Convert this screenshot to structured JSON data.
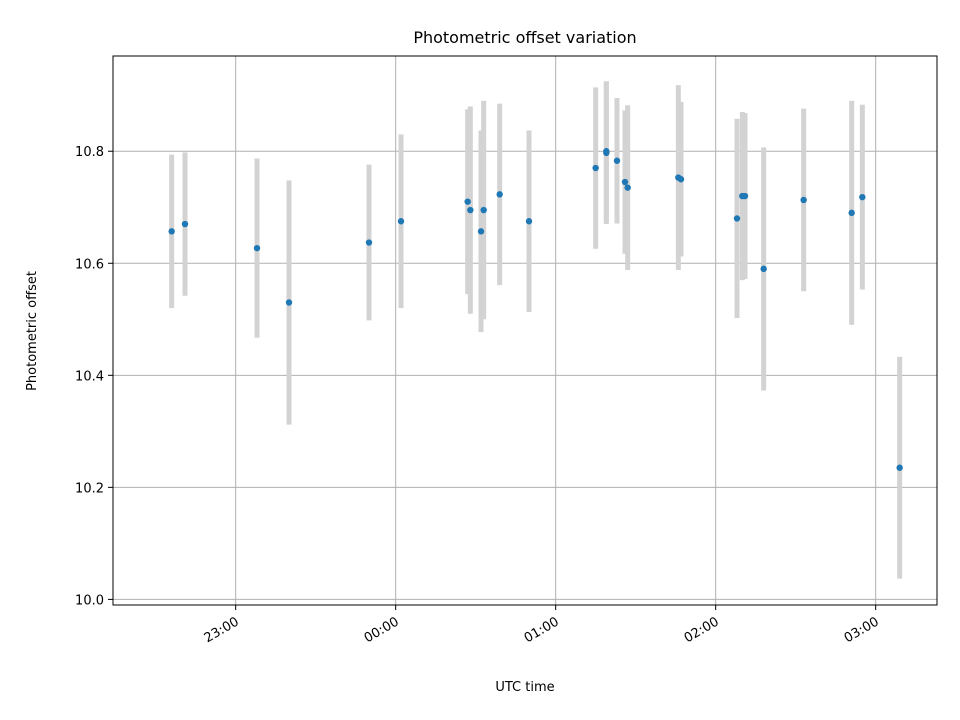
{
  "chart_data": {
    "type": "scatter",
    "title": "Photometric offset variation",
    "xlabel": "UTC time",
    "ylabel": "Photometric offset",
    "x_axis_type": "time",
    "xlim": [
      "22:14",
      "03:23"
    ],
    "ylim": [
      9.99,
      10.97
    ],
    "grid": true,
    "x_ticks": [
      "23:00",
      "00:00",
      "01:00",
      "02:00",
      "03:00"
    ],
    "x_tick_rotation": 30,
    "y_ticks": [
      "10.0",
      "10.2",
      "10.4",
      "10.6",
      "10.8"
    ],
    "colors": {
      "marker": "#1f77b4",
      "errorbar": "#d3d3d3",
      "grid": "#b0b0b0"
    },
    "points": [
      {
        "x": "22:36",
        "y": 10.657,
        "err": 0.137
      },
      {
        "x": "22:41",
        "y": 10.67,
        "err": 0.128
      },
      {
        "x": "23:08",
        "y": 10.627,
        "err": 0.16
      },
      {
        "x": "23:20",
        "y": 10.53,
        "err": 0.218
      },
      {
        "x": "23:50",
        "y": 10.637,
        "err": 0.139
      },
      {
        "x": "00:02",
        "y": 10.675,
        "err": 0.155
      },
      {
        "x": "00:27",
        "y": 10.71,
        "err": 0.165
      },
      {
        "x": "00:28",
        "y": 10.695,
        "err": 0.185
      },
      {
        "x": "00:32",
        "y": 10.657,
        "err": 0.18
      },
      {
        "x": "00:33",
        "y": 10.695,
        "err": 0.195
      },
      {
        "x": "00:39",
        "y": 10.723,
        "err": 0.162
      },
      {
        "x": "00:50",
        "y": 10.675,
        "err": 0.162
      },
      {
        "x": "01:15",
        "y": 10.77,
        "err": 0.144
      },
      {
        "x": "01:19",
        "y": 10.797,
        "err": 0.127
      },
      {
        "x": "01:19",
        "y": 10.8,
        "err": 0.125
      },
      {
        "x": "01:23",
        "y": 10.783,
        "err": 0.112
      },
      {
        "x": "01:26",
        "y": 10.745,
        "err": 0.128
      },
      {
        "x": "01:27",
        "y": 10.735,
        "err": 0.147
      },
      {
        "x": "01:46",
        "y": 10.753,
        "err": 0.165
      },
      {
        "x": "01:47",
        "y": 10.75,
        "err": 0.138
      },
      {
        "x": "02:08",
        "y": 10.68,
        "err": 0.178
      },
      {
        "x": "02:10",
        "y": 10.72,
        "err": 0.15
      },
      {
        "x": "02:11",
        "y": 10.72,
        "err": 0.148
      },
      {
        "x": "02:18",
        "y": 10.59,
        "err": 0.217
      },
      {
        "x": "02:33",
        "y": 10.713,
        "err": 0.163
      },
      {
        "x": "02:51",
        "y": 10.69,
        "err": 0.2
      },
      {
        "x": "02:55",
        "y": 10.718,
        "err": 0.165
      },
      {
        "x": "03:09",
        "y": 10.235,
        "err": 0.198
      }
    ]
  }
}
